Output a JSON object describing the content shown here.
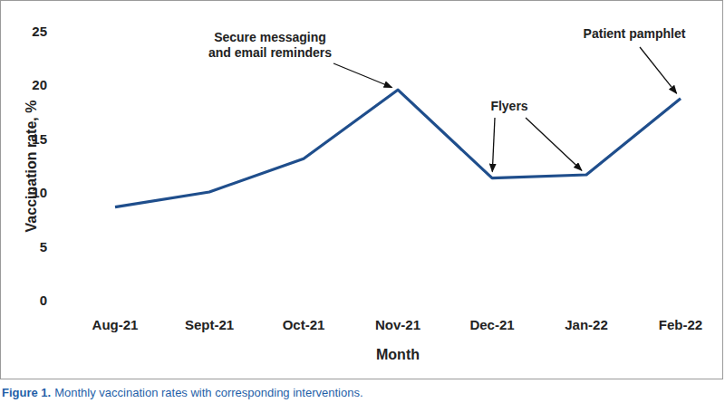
{
  "chart_data": {
    "type": "line",
    "x_label": "Month",
    "y_label": "Vaccination rate, %",
    "categories": [
      "Aug-21",
      "Sept-21",
      "Oct-21",
      "Nov-21",
      "Dec-21",
      "Jan-22",
      "Feb-22"
    ],
    "values": [
      8.7,
      10.1,
      13.2,
      19.6,
      11.4,
      11.7,
      18.8
    ],
    "color": "#1f4e8c",
    "ylim": [
      0,
      25
    ],
    "yticks": [
      0,
      5,
      10,
      15,
      20,
      25
    ],
    "grid": false,
    "annotations": [
      {
        "text": [
          "Secure messaging",
          "and email reminders"
        ],
        "points": [
          "Nov-21"
        ]
      },
      {
        "text": [
          "Flyers"
        ],
        "points": [
          "Dec-21",
          "Jan-22"
        ]
      },
      {
        "text": [
          "Patient pamphlet"
        ],
        "points": [
          "Feb-22"
        ]
      }
    ],
    "figure_label": "Figure 1.",
    "caption": "Monthly vaccination rates with corresponding interventions."
  }
}
